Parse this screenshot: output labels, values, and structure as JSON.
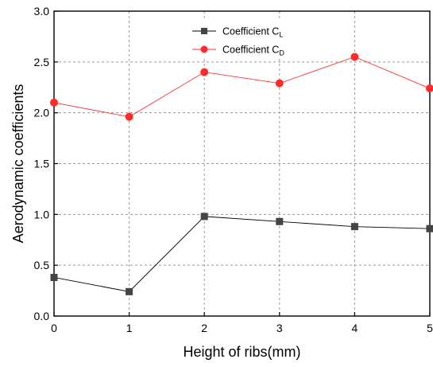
{
  "chart_data": {
    "type": "line",
    "xlabel": "Height of ribs(mm)",
    "ylabel": "Aerodynamic coefficients",
    "xlim": [
      0,
      5
    ],
    "ylim": [
      0.0,
      3.0
    ],
    "xticks": [
      "0",
      "1",
      "2",
      "3",
      "4",
      "5"
    ],
    "yticks": [
      "0.0",
      "0.5",
      "1.0",
      "1.5",
      "2.0",
      "2.5",
      "3.0"
    ],
    "grid": true,
    "legend_position": "top-center",
    "x": [
      0,
      1,
      2,
      3,
      4,
      5
    ],
    "series": [
      {
        "name_main": "Coefficient C",
        "name_sub": "L",
        "values": [
          0.38,
          0.24,
          0.98,
          0.93,
          0.88,
          0.86
        ],
        "color": "#000000",
        "marker": "square",
        "marker_color": "#444444"
      },
      {
        "name_main": "Coefficient C",
        "name_sub": "D",
        "values": [
          2.1,
          1.96,
          2.4,
          2.29,
          2.55,
          2.24
        ],
        "color": "#ff3333",
        "marker": "circle",
        "marker_color": "#ff2a2a"
      }
    ]
  }
}
